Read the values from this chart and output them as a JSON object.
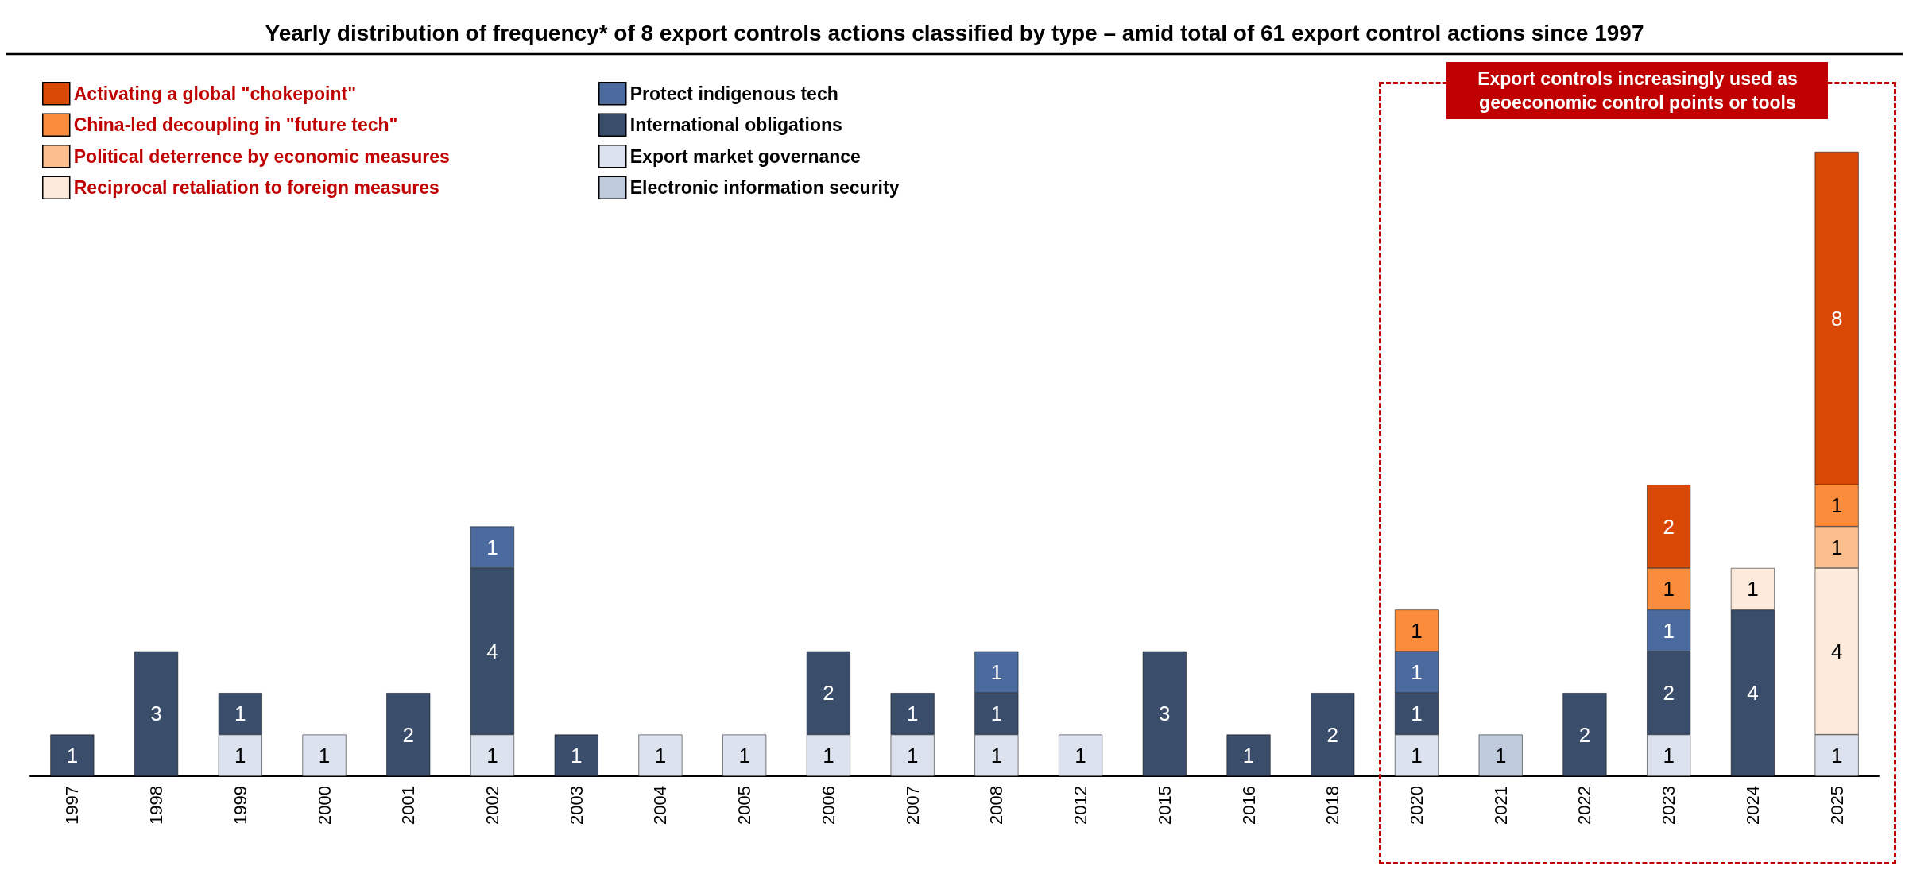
{
  "chart_data": {
    "type": "bar",
    "stacked": true,
    "data_labels": true,
    "legend": "top left",
    "grid": false,
    "title": "Yearly distribution of frequency* of 8 export controls actions classified by type – amid total of 61 export control actions since 1997",
    "categories": [
      "1997",
      "1998",
      "1999",
      "2000",
      "2001",
      "2002",
      "2003",
      "2004",
      "2005",
      "2006",
      "2007",
      "2008",
      "2012",
      "2015",
      "2016",
      "2018",
      "2020",
      "2021",
      "2022",
      "2023",
      "2024",
      "2025"
    ],
    "series": [
      {
        "name": "Electronic information security",
        "color": "#bfcadc",
        "values": [
          null,
          null,
          null,
          null,
          null,
          null,
          null,
          null,
          null,
          null,
          null,
          null,
          null,
          null,
          null,
          null,
          null,
          1,
          null,
          null,
          null,
          null
        ]
      },
      {
        "name": "Export market governance",
        "color": "#dce3ee",
        "values": [
          null,
          null,
          1,
          1,
          null,
          1,
          null,
          1,
          1,
          1,
          1,
          1,
          1,
          null,
          null,
          null,
          1,
          null,
          null,
          1,
          null,
          1
        ]
      },
      {
        "name": "International obligations",
        "color": "#3a4e6c",
        "values": [
          1,
          3,
          1,
          null,
          2,
          4,
          1,
          null,
          null,
          2,
          1,
          1,
          null,
          3,
          1,
          2,
          1,
          null,
          2,
          2,
          4,
          null
        ]
      },
      {
        "name": "Protect indigenous tech",
        "color": "#4b6b9e",
        "values": [
          null,
          null,
          null,
          null,
          null,
          1,
          null,
          null,
          null,
          null,
          null,
          1,
          null,
          null,
          null,
          null,
          1,
          null,
          null,
          1,
          null,
          null
        ]
      },
      {
        "name": "Reciprocal retaliation to foreign measures",
        "color": "#fdeadb",
        "values": [
          null,
          null,
          null,
          null,
          null,
          null,
          null,
          null,
          null,
          null,
          null,
          null,
          null,
          null,
          null,
          null,
          null,
          null,
          null,
          null,
          1,
          4
        ]
      },
      {
        "name": "Political deterrence by economic measures",
        "color": "#fbbf8e",
        "values": [
          null,
          null,
          null,
          null,
          null,
          null,
          null,
          null,
          null,
          null,
          null,
          null,
          null,
          null,
          null,
          null,
          null,
          null,
          null,
          null,
          null,
          1
        ]
      },
      {
        "name": "China-led decoupling in \"future tech\"",
        "color": "#fa8c3c",
        "values": [
          null,
          null,
          null,
          null,
          null,
          null,
          null,
          null,
          null,
          null,
          null,
          null,
          null,
          null,
          null,
          null,
          1,
          null,
          null,
          1,
          null,
          1
        ]
      },
      {
        "name": "Activating a global \"chokepoint\"",
        "color": "#d94805",
        "values": [
          null,
          null,
          null,
          null,
          null,
          null,
          null,
          null,
          null,
          null,
          null,
          null,
          null,
          null,
          null,
          null,
          null,
          null,
          null,
          2,
          null,
          8
        ]
      }
    ],
    "annotations": [
      "Export controls increasingly used as geoeconomic control points or tools"
    ]
  }
}
